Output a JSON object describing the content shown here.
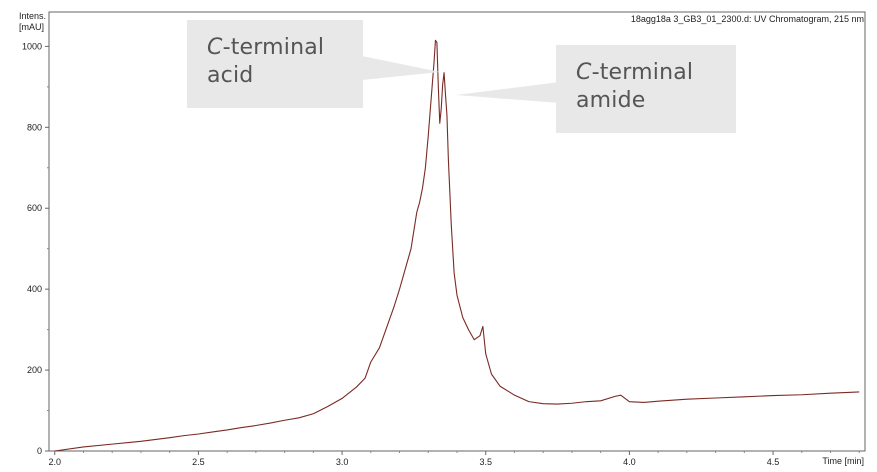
{
  "chart_data": {
    "type": "line",
    "title": "18agg18a 3_GB3_01_2300.d: UV Chromatogram, 215 nm",
    "ylabel_line1": "Intens.",
    "ylabel_line2": "[mAU]",
    "xlabel": "Time [min]",
    "xlim": [
      1.98,
      4.82
    ],
    "ylim": [
      0,
      1085
    ],
    "x_ticks": [
      2.0,
      2.5,
      3.0,
      3.5,
      4.0,
      4.5
    ],
    "x_tick_labels": [
      "2.0",
      "2.5",
      "3.0",
      "3.5",
      "4.0",
      "4.5"
    ],
    "y_ticks": [
      0,
      200,
      400,
      600,
      800,
      1000
    ],
    "y_tick_labels": [
      "0",
      "200",
      "400",
      "600",
      "800",
      "1000"
    ],
    "grid": false,
    "series": [
      {
        "color": "#7a2a24",
        "x": [
          2.0,
          2.1,
          2.2,
          2.3,
          2.4,
          2.45,
          2.5,
          2.55,
          2.6,
          2.65,
          2.7,
          2.75,
          2.8,
          2.85,
          2.9,
          2.95,
          3.0,
          3.05,
          3.08,
          3.1,
          3.13,
          3.15,
          3.18,
          3.2,
          3.22,
          3.24,
          3.25,
          3.26,
          3.27,
          3.28,
          3.29,
          3.3,
          3.31,
          3.32,
          3.325,
          3.33,
          3.335,
          3.34,
          3.345,
          3.35,
          3.355,
          3.36,
          3.365,
          3.37,
          3.375,
          3.38,
          3.39,
          3.4,
          3.42,
          3.44,
          3.46,
          3.48,
          3.49,
          3.5,
          3.52,
          3.55,
          3.6,
          3.65,
          3.7,
          3.75,
          3.8,
          3.85,
          3.9,
          3.95,
          3.97,
          4.0,
          4.05,
          4.1,
          4.2,
          4.3,
          4.4,
          4.5,
          4.6,
          4.7,
          4.8
        ],
        "y": [
          0,
          10,
          17,
          24,
          33,
          38,
          42,
          47,
          52,
          58,
          63,
          69,
          76,
          82,
          92,
          110,
          130,
          158,
          180,
          220,
          255,
          295,
          355,
          400,
          450,
          500,
          545,
          590,
          615,
          650,
          700,
          780,
          870,
          960,
          1015,
          1010,
          900,
          810,
          845,
          905,
          935,
          880,
          830,
          720,
          640,
          560,
          440,
          385,
          330,
          300,
          275,
          285,
          308,
          240,
          190,
          160,
          138,
          122,
          117,
          116,
          118,
          122,
          124,
          135,
          138,
          122,
          120,
          123,
          128,
          131,
          134,
          137,
          139,
          143,
          146
        ]
      }
    ]
  },
  "annotations": {
    "acid_italic": "C",
    "acid_rest": "-terminal",
    "acid_line2": "acid",
    "amide_italic": "C",
    "amide_rest": "-terminal",
    "amide_line2": "amide"
  }
}
